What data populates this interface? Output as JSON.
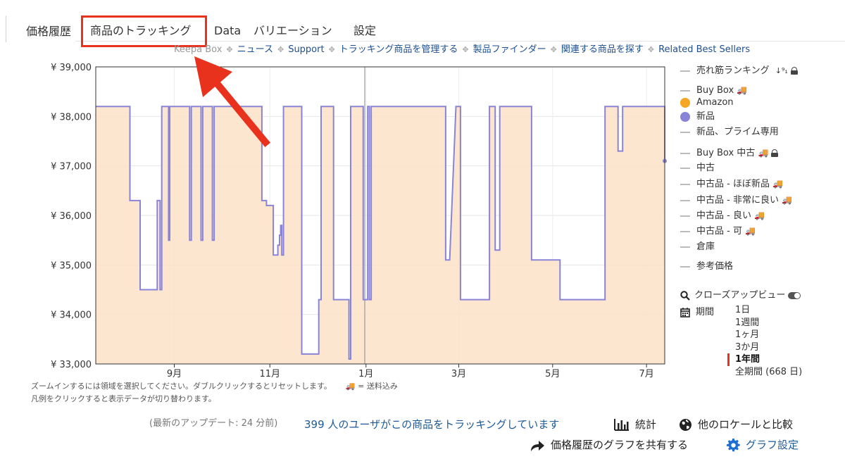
{
  "tabs": [
    {
      "label": "価格履歴",
      "active": true
    },
    {
      "label": "商品のトラッキング",
      "highlighted": true
    },
    {
      "label": "Data"
    },
    {
      "label": "バリエーション"
    },
    {
      "label": "設定"
    }
  ],
  "links": [
    "Keepa Box",
    "ニュース",
    "Support",
    "トラッキング商品を管理する",
    "製品ファインダー",
    "関連する商品を探す",
    "Related Best Sellers"
  ],
  "annotation_color": "#e8321e",
  "chart_data": {
    "type": "line",
    "ylim": [
      33000,
      39000
    ],
    "y_ticks": [
      "¥ 39,000",
      "¥ 38,000",
      "¥ 37,000",
      "¥ 36,000",
      "¥ 35,000",
      "¥ 34,000",
      "¥ 33,000"
    ],
    "x_ticks": [
      "9月",
      "11月",
      "1月",
      "3月",
      "5月",
      "7月"
    ],
    "series": [
      {
        "name": "新品",
        "color": "#8a84d6",
        "fill": "#fde2c8",
        "points": [
          [
            0,
            38200
          ],
          [
            6,
            38200
          ],
          [
            6,
            36300
          ],
          [
            7.8,
            36300
          ],
          [
            7.8,
            34500
          ],
          [
            10.8,
            34500
          ],
          [
            10.8,
            36300
          ],
          [
            11.3,
            36300
          ],
          [
            11.3,
            34500
          ],
          [
            11.6,
            34500
          ],
          [
            11.6,
            38200
          ],
          [
            12.8,
            38200
          ],
          [
            12.8,
            35500
          ],
          [
            13,
            35500
          ],
          [
            13,
            38200
          ],
          [
            16.5,
            38200
          ],
          [
            16.5,
            35500
          ],
          [
            16.8,
            35500
          ],
          [
            16.8,
            38200
          ],
          [
            18.5,
            38200
          ],
          [
            18.5,
            35500
          ],
          [
            18.8,
            35500
          ],
          [
            18.8,
            38200
          ],
          [
            20.5,
            38200
          ],
          [
            20.5,
            35500
          ],
          [
            20.8,
            35500
          ],
          [
            20.8,
            38200
          ],
          [
            29.2,
            38200
          ],
          [
            29.2,
            36300
          ],
          [
            30,
            36300
          ],
          [
            30,
            36200
          ],
          [
            31.2,
            36200
          ],
          [
            31.2,
            35200
          ],
          [
            32,
            35200
          ],
          [
            32,
            35400
          ],
          [
            32.3,
            35400
          ],
          [
            32.3,
            35600
          ],
          [
            32.5,
            35600
          ],
          [
            32.5,
            35800
          ],
          [
            32.7,
            35800
          ],
          [
            32.7,
            35200
          ],
          [
            33,
            35200
          ],
          [
            33,
            38200
          ],
          [
            36.2,
            38200
          ],
          [
            36.2,
            33200
          ],
          [
            39.2,
            33200
          ],
          [
            39.2,
            34300
          ],
          [
            39.6,
            34300
          ],
          [
            39.6,
            38200
          ],
          [
            41.8,
            38200
          ],
          [
            41.8,
            34300
          ],
          [
            44.5,
            34300
          ],
          [
            44.5,
            33100
          ],
          [
            44.8,
            33100
          ],
          [
            44.8,
            38200
          ],
          [
            47,
            38200
          ],
          [
            47,
            34300
          ],
          [
            47.8,
            34300
          ],
          [
            47.8,
            38200
          ],
          [
            48.1,
            38200
          ],
          [
            48.1,
            34300
          ],
          [
            48.4,
            34300
          ],
          [
            48.4,
            38200
          ],
          [
            61.5,
            38200
          ],
          [
            61.5,
            35100
          ],
          [
            62.2,
            35100
          ],
          [
            63.3,
            38200
          ],
          [
            64.1,
            38200
          ],
          [
            64.1,
            34300
          ],
          [
            69.2,
            34300
          ],
          [
            69.2,
            38200
          ],
          [
            70.2,
            38200
          ],
          [
            70.2,
            35300
          ],
          [
            71,
            35300
          ],
          [
            71,
            38200
          ],
          [
            71.6,
            38200
          ],
          [
            73.2,
            38200
          ],
          [
            76.6,
            38200
          ],
          [
            76.6,
            35100
          ],
          [
            81.6,
            35100
          ],
          [
            81.6,
            34300
          ],
          [
            89.5,
            34300
          ],
          [
            89.5,
            38200
          ],
          [
            91.8,
            38200
          ],
          [
            91.8,
            37300
          ],
          [
            92.6,
            37300
          ],
          [
            92.6,
            38200
          ],
          [
            100,
            38200
          ],
          [
            100,
            37100
          ]
        ]
      }
    ]
  },
  "legend": {
    "items": [
      {
        "label": "売れ筋ランキング",
        "type": "dash",
        "sort_glyph": "↓⁹₁",
        "lock": true
      },
      {
        "label": "Buy Box",
        "type": "dash",
        "truck": true
      },
      {
        "label": "Amazon",
        "type": "dot",
        "color": "#f5a623"
      },
      {
        "label": "新品",
        "type": "dot",
        "color": "#8a84d6"
      },
      {
        "label": "新品、プライム専用",
        "type": "dash"
      },
      {
        "label": "Buy Box 中古",
        "type": "dash",
        "truck": true,
        "lock": true
      },
      {
        "label": "中古",
        "type": "dash"
      },
      {
        "label": "中古品 - ほぼ新品",
        "type": "dash",
        "truck": true
      },
      {
        "label": "中古品 - 非常に良い",
        "type": "dash",
        "truck": true
      },
      {
        "label": "中古品 - 良い",
        "type": "dash",
        "truck": true
      },
      {
        "label": "中古品 - 可",
        "type": "dash",
        "truck": true
      },
      {
        "label": "倉庫",
        "type": "dash"
      },
      {
        "label": "参考価格",
        "type": "dash"
      }
    ],
    "truck_glyph": "🚚",
    "closeup_label": "クローズアップビュー",
    "period_label": "期間",
    "periods": [
      "1日",
      "1週間",
      "1ヶ月",
      "3か月",
      "1年間",
      "全期間 (668 日)"
    ],
    "active_period": "1年間"
  },
  "notes": {
    "line1": "ズームインするには領域を選択してください。ダブルクリックするとリセットします。",
    "shipping": "🚚 = 送料込み",
    "line2": "凡例をクリックすると表示データが切り替わります。"
  },
  "footer": {
    "last_update": "(最新のアップデート: 24 分前)",
    "trackers": "399 人のユーザがこの商品をトラッキングしています",
    "stats": "統計",
    "compare": "他のロケールと比較",
    "share": "価格履歴のグラフを共有する",
    "graph_settings": "グラフ設定"
  }
}
